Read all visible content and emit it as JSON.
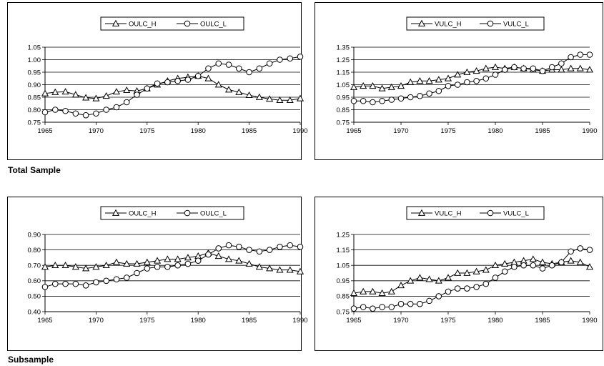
{
  "captions": {
    "total": "Total Sample",
    "sub": "Subsample"
  },
  "chart_data": [
    {
      "type": "line",
      "title": "",
      "xlabel": "",
      "ylabel": "",
      "xlim": [
        1965,
        1990
      ],
      "ylim": [
        0.75,
        1.05
      ],
      "yticks": [
        "0.75",
        "0.80",
        "0.85",
        "0.90",
        "0.95",
        "1.00",
        "1.05"
      ],
      "xticks": [
        "1965",
        "1970",
        "1975",
        "1980",
        "1985",
        "1990"
      ],
      "grid": true,
      "legend": "top-center",
      "x": [
        1965,
        1966,
        1967,
        1968,
        1969,
        1970,
        1971,
        1972,
        1973,
        1974,
        1975,
        1976,
        1977,
        1978,
        1979,
        1980,
        1981,
        1982,
        1983,
        1984,
        1985,
        1986,
        1987,
        1988,
        1989,
        1990
      ],
      "series": [
        {
          "name": "OULC_H",
          "marker": "triangle",
          "values": [
            0.865,
            0.87,
            0.872,
            0.86,
            0.848,
            0.845,
            0.855,
            0.872,
            0.878,
            0.875,
            0.885,
            0.9,
            0.915,
            0.925,
            0.93,
            0.935,
            0.925,
            0.9,
            0.88,
            0.87,
            0.858,
            0.85,
            0.843,
            0.838,
            0.838,
            0.845
          ]
        },
        {
          "name": "OULC_L",
          "marker": "circle",
          "values": [
            0.79,
            0.8,
            0.795,
            0.785,
            0.778,
            0.785,
            0.8,
            0.81,
            0.83,
            0.86,
            0.885,
            0.905,
            0.91,
            0.915,
            0.92,
            0.935,
            0.965,
            0.985,
            0.98,
            0.965,
            0.95,
            0.965,
            0.985,
            1.0,
            1.005,
            1.012
          ]
        }
      ]
    },
    {
      "type": "line",
      "title": "",
      "xlabel": "",
      "ylabel": "",
      "xlim": [
        1965,
        1990
      ],
      "ylim": [
        0.75,
        1.35
      ],
      "yticks": [
        "0.75",
        "0.85",
        "0.95",
        "1.05",
        "1.15",
        "1.25",
        "1.35"
      ],
      "xticks": [
        "1965",
        "1970",
        "1975",
        "1980",
        "1985",
        "1990"
      ],
      "grid": true,
      "legend": "top-center",
      "x": [
        1965,
        1966,
        1967,
        1968,
        1969,
        1970,
        1971,
        1972,
        1973,
        1974,
        1975,
        1976,
        1977,
        1978,
        1979,
        1980,
        1981,
        1982,
        1983,
        1984,
        1985,
        1986,
        1987,
        1988,
        1989,
        1990
      ],
      "series": [
        {
          "name": "VULC_H",
          "marker": "triangle",
          "values": [
            1.03,
            1.04,
            1.04,
            1.02,
            1.03,
            1.04,
            1.07,
            1.08,
            1.08,
            1.09,
            1.1,
            1.13,
            1.15,
            1.16,
            1.18,
            1.19,
            1.18,
            1.19,
            1.18,
            1.17,
            1.16,
            1.17,
            1.17,
            1.18,
            1.18,
            1.17
          ]
        },
        {
          "name": "VULC_L",
          "marker": "circle",
          "values": [
            0.92,
            0.92,
            0.91,
            0.92,
            0.93,
            0.94,
            0.95,
            0.96,
            0.98,
            1.0,
            1.04,
            1.05,
            1.07,
            1.08,
            1.1,
            1.13,
            1.17,
            1.19,
            1.18,
            1.18,
            1.16,
            1.19,
            1.22,
            1.27,
            1.29,
            1.29
          ]
        }
      ]
    },
    {
      "type": "line",
      "title": "",
      "xlabel": "",
      "ylabel": "",
      "xlim": [
        1965,
        1990
      ],
      "ylim": [
        0.4,
        0.9
      ],
      "yticks": [
        "0.40",
        "0.50",
        "0.60",
        "0.70",
        "0.80",
        "0.90"
      ],
      "xticks": [
        "1965",
        "1970",
        "1975",
        "1980",
        "1985",
        "1990"
      ],
      "grid": true,
      "legend": "top-center",
      "x": [
        1965,
        1966,
        1967,
        1968,
        1969,
        1970,
        1971,
        1972,
        1973,
        1974,
        1975,
        1976,
        1977,
        1978,
        1979,
        1980,
        1981,
        1982,
        1983,
        1984,
        1985,
        1986,
        1987,
        1988,
        1989,
        1990
      ],
      "series": [
        {
          "name": "OULC_H",
          "marker": "triangle",
          "values": [
            0.69,
            0.7,
            0.7,
            0.69,
            0.68,
            0.69,
            0.7,
            0.72,
            0.71,
            0.71,
            0.72,
            0.73,
            0.74,
            0.74,
            0.75,
            0.76,
            0.78,
            0.76,
            0.74,
            0.73,
            0.71,
            0.69,
            0.68,
            0.67,
            0.67,
            0.66
          ]
        },
        {
          "name": "OULC_L",
          "marker": "circle",
          "values": [
            0.56,
            0.58,
            0.58,
            0.58,
            0.57,
            0.59,
            0.6,
            0.61,
            0.62,
            0.65,
            0.68,
            0.69,
            0.69,
            0.7,
            0.71,
            0.73,
            0.77,
            0.81,
            0.83,
            0.82,
            0.8,
            0.79,
            0.8,
            0.82,
            0.83,
            0.82
          ]
        }
      ]
    },
    {
      "type": "line",
      "title": "",
      "xlabel": "",
      "ylabel": "",
      "xlim": [
        1965,
        1990
      ],
      "ylim": [
        0.75,
        1.25
      ],
      "yticks": [
        "0.75",
        "0.85",
        "0.95",
        "1.05",
        "1.15",
        "1.25"
      ],
      "xticks": [
        "1965",
        "1970",
        "1975",
        "1980",
        "1985",
        "1990"
      ],
      "grid": true,
      "legend": "top-center",
      "x": [
        1965,
        1966,
        1967,
        1968,
        1969,
        1970,
        1971,
        1972,
        1973,
        1974,
        1975,
        1976,
        1977,
        1978,
        1979,
        1980,
        1981,
        1982,
        1983,
        1984,
        1985,
        1986,
        1987,
        1988,
        1989,
        1990
      ],
      "series": [
        {
          "name": "VULC_H",
          "marker": "triangle",
          "values": [
            0.87,
            0.88,
            0.88,
            0.87,
            0.88,
            0.92,
            0.95,
            0.97,
            0.96,
            0.95,
            0.97,
            1.0,
            1.0,
            1.01,
            1.02,
            1.05,
            1.06,
            1.07,
            1.08,
            1.09,
            1.07,
            1.06,
            1.07,
            1.08,
            1.07,
            1.04
          ]
        },
        {
          "name": "VULC_L",
          "marker": "circle",
          "values": [
            0.77,
            0.78,
            0.77,
            0.78,
            0.78,
            0.8,
            0.8,
            0.8,
            0.82,
            0.85,
            0.88,
            0.9,
            0.9,
            0.91,
            0.93,
            0.97,
            1.01,
            1.04,
            1.05,
            1.05,
            1.03,
            1.05,
            1.07,
            1.14,
            1.16,
            1.15
          ]
        }
      ]
    }
  ]
}
